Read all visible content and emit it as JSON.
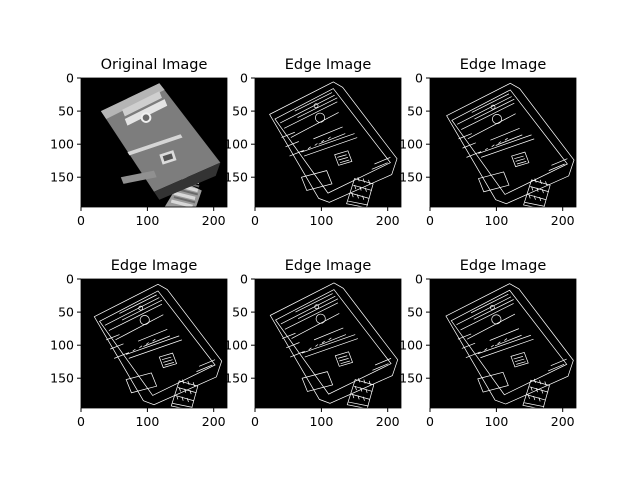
{
  "figure": {
    "panels": [
      {
        "title": "Original Image",
        "kind": "photo"
      },
      {
        "title": "Edge Image",
        "kind": "edge",
        "variant": 0
      },
      {
        "title": "Edge Image",
        "kind": "edge",
        "variant": 1
      },
      {
        "title": "Edge Image",
        "kind": "edge",
        "variant": 2
      },
      {
        "title": "Edge Image",
        "kind": "edge",
        "variant": 3
      },
      {
        "title": "Edge Image",
        "kind": "edge",
        "variant": 4
      }
    ],
    "x_ticks": [
      "0",
      "100",
      "200"
    ],
    "y_ticks": [
      "0",
      "50",
      "100",
      "150"
    ],
    "colors": {
      "background": "#000000",
      "edge": "#ffffff",
      "device_body": "#8a8a8a",
      "device_dark": "#3a3a3a"
    }
  }
}
